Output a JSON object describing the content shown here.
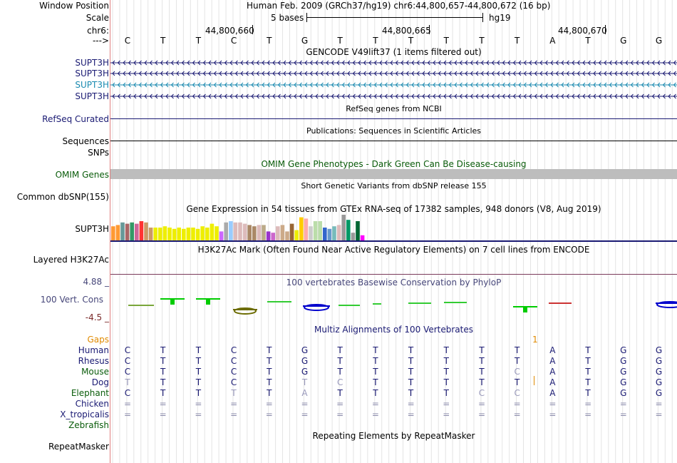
{
  "header": {
    "window_position_label": "Window Position",
    "window_position_value": "Human Feb. 2009 (GRCh37/hg19)   chr6:44,800,657-44,800,672 (16 bp)",
    "scale_label": "Scale",
    "scale_text": "5 bases",
    "scale_assembly": "hg19",
    "chrom_label": "chr6:",
    "positions": [
      "44,800,660",
      "44,800,665",
      "44,800,670"
    ],
    "strand_label": "--->",
    "bases": [
      "C",
      "T",
      "T",
      "C",
      "T",
      "G",
      "T",
      "T",
      "T",
      "T",
      "T",
      "T",
      "A",
      "T",
      "G",
      "G"
    ]
  },
  "gencode": {
    "title": "GENCODE V49lift37 (1 items filtered out)",
    "genes": [
      "SUPT3H",
      "SUPT3H",
      "SUPT3H",
      "SUPT3H"
    ]
  },
  "refseq": {
    "title": "RefSeq genes from NCBI",
    "label": "RefSeq Curated"
  },
  "publications": {
    "title": "Publications: Sequences in Scientific Articles",
    "label": "Sequences"
  },
  "snps": {
    "label": "SNPs"
  },
  "omim": {
    "title": "OMIM Gene Phenotypes - Dark Green Can Be Disease-causing",
    "label": "OMIM Genes"
  },
  "dbsnp": {
    "title": "Short Genetic Variants from dbSNP release 155",
    "label": "Common dbSNP(155)"
  },
  "gtex": {
    "title": "Gene Expression in 54 tissues from GTEx RNA-seq of 17382 samples, 948 donors (V8, Aug 2019)",
    "label": "SUPT3H",
    "bars": [
      {
        "v": 0.55,
        "c": "#ff9933"
      },
      {
        "v": 0.6,
        "c": "#ff9933"
      },
      {
        "v": 0.7,
        "c": "#669999"
      },
      {
        "v": 0.65,
        "c": "#aa6666"
      },
      {
        "v": 0.7,
        "c": "#339966"
      },
      {
        "v": 0.65,
        "c": "#cc6699"
      },
      {
        "v": 0.75,
        "c": "#ff3333"
      },
      {
        "v": 0.7,
        "c": "#cc9966"
      },
      {
        "v": 0.5,
        "c": "#cc9966"
      },
      {
        "v": 0.5,
        "c": "#eeee00"
      },
      {
        "v": 0.5,
        "c": "#eeee00"
      },
      {
        "v": 0.55,
        "c": "#eeee00"
      },
      {
        "v": 0.5,
        "c": "#eeee00"
      },
      {
        "v": 0.45,
        "c": "#eeee00"
      },
      {
        "v": 0.5,
        "c": "#eeee00"
      },
      {
        "v": 0.45,
        "c": "#eeee00"
      },
      {
        "v": 0.5,
        "c": "#eeee00"
      },
      {
        "v": 0.5,
        "c": "#eeee00"
      },
      {
        "v": 0.45,
        "c": "#eeee00"
      },
      {
        "v": 0.55,
        "c": "#eeee00"
      },
      {
        "v": 0.5,
        "c": "#eeee00"
      },
      {
        "v": 0.65,
        "c": "#eeee00"
      },
      {
        "v": 0.55,
        "c": "#eeee00"
      },
      {
        "v": 0.35,
        "c": "#cc66ff"
      },
      {
        "v": 0.7,
        "c": "#aaaaaa"
      },
      {
        "v": 0.75,
        "c": "#99ccff"
      },
      {
        "v": 0.7,
        "c": "#ddbbbb"
      },
      {
        "v": 0.7,
        "c": "#ddbbbb"
      },
      {
        "v": 0.65,
        "c": "#ddbbbb"
      },
      {
        "v": 0.6,
        "c": "#aa8866"
      },
      {
        "v": 0.55,
        "c": "#aa8866"
      },
      {
        "v": 0.6,
        "c": "#ddbbbb"
      },
      {
        "v": 0.6,
        "c": "#bbaa88"
      },
      {
        "v": 0.35,
        "c": "#9933cc"
      },
      {
        "v": 0.3,
        "c": "#cc66cc"
      },
      {
        "v": 0.55,
        "c": "#ddbbbb"
      },
      {
        "v": 0.6,
        "c": "#ccaa88"
      },
      {
        "v": 0.35,
        "c": "#ccaa88"
      },
      {
        "v": 0.65,
        "c": "#996633"
      },
      {
        "v": 0.4,
        "c": "#eeee00"
      },
      {
        "v": 0.9,
        "c": "#ffcc00"
      },
      {
        "v": 0.85,
        "c": "#ffaaaa"
      },
      {
        "v": 0.55,
        "c": "#cccccc"
      },
      {
        "v": 0.75,
        "c": "#bbddaa"
      },
      {
        "v": 0.75,
        "c": "#bbddaa"
      },
      {
        "v": 0.5,
        "c": "#3366cc"
      },
      {
        "v": 0.45,
        "c": "#6699cc"
      },
      {
        "v": 0.55,
        "c": "#77bbbb"
      },
      {
        "v": 0.6,
        "c": "#ddbbbb"
      },
      {
        "v": 1.0,
        "c": "#999999"
      },
      {
        "v": 0.8,
        "c": "#009966"
      },
      {
        "v": 0.3,
        "c": "#999999"
      },
      {
        "v": 0.75,
        "c": "#006633"
      },
      {
        "v": 0.2,
        "c": "#ff00ff"
      }
    ]
  },
  "h3k27ac": {
    "title": "H3K27Ac Mark (Often Found Near Active Regulatory Elements) on 7 cell lines from ENCODE",
    "label": "Layered H3K27Ac"
  },
  "phylop": {
    "title": "100 vertebrates Basewise Conservation by PhyloP",
    "label": "100 Vert. Cons",
    "max": "4.88 _",
    "min": "-4.5 _"
  },
  "multiz": {
    "title": "Multiz Alignments of 100 Vertebrates",
    "gaps_label": "Gaps",
    "gap_mark": "1",
    "species": [
      {
        "name": "Human",
        "cls": "navy",
        "seq": [
          "C",
          "T",
          "T",
          "C",
          "T",
          "G",
          "T",
          "T",
          "T",
          "T",
          "T",
          "T",
          "A",
          "T",
          "G",
          "G"
        ]
      },
      {
        "name": "Rhesus",
        "cls": "navy",
        "seq": [
          "C",
          "T",
          "T",
          "C",
          "T",
          "G",
          "T",
          "T",
          "T",
          "T",
          "T",
          "T",
          "A",
          "T",
          "G",
          "G"
        ]
      },
      {
        "name": "Mouse",
        "cls": "green",
        "seq": [
          "C",
          "T",
          "T",
          "C",
          "T",
          "G",
          "T",
          "T",
          "T",
          "T",
          "T",
          "C",
          "A",
          "T",
          "G",
          "G"
        ]
      },
      {
        "name": "Dog",
        "cls": "navy",
        "seq": [
          "T",
          "T",
          "T",
          "C",
          "T",
          "T",
          "C",
          "T",
          "T",
          "T",
          "T",
          "T",
          "A",
          "T",
          "G",
          "G"
        ]
      },
      {
        "name": "Elephant",
        "cls": "green",
        "seq": [
          "C",
          "T",
          "T",
          "T",
          "T",
          "A",
          "T",
          "T",
          "T",
          "T",
          "C",
          "C",
          "A",
          "T",
          "G",
          "G"
        ]
      },
      {
        "name": "Chicken",
        "cls": "navy",
        "seq": [
          "=",
          "=",
          "=",
          "=",
          "=",
          "=",
          "=",
          "=",
          "=",
          "=",
          "=",
          "=",
          "=",
          "=",
          "=",
          "="
        ]
      },
      {
        "name": "X_tropicalis",
        "cls": "navy",
        "seq": [
          "=",
          "=",
          "=",
          "=",
          "=",
          "=",
          "=",
          "=",
          "=",
          "=",
          "=",
          "=",
          "=",
          "=",
          "=",
          "="
        ]
      },
      {
        "name": "Zebrafish",
        "cls": "green",
        "seq": [
          "",
          "",
          "",
          "",
          "",
          "",
          "",
          "",
          "",
          "",
          "",
          "",
          "",
          "",
          "",
          ""
        ]
      }
    ]
  },
  "repeatmasker": {
    "title": "Repeating Elements by RepeatMasker",
    "label": "RepeatMasker"
  }
}
